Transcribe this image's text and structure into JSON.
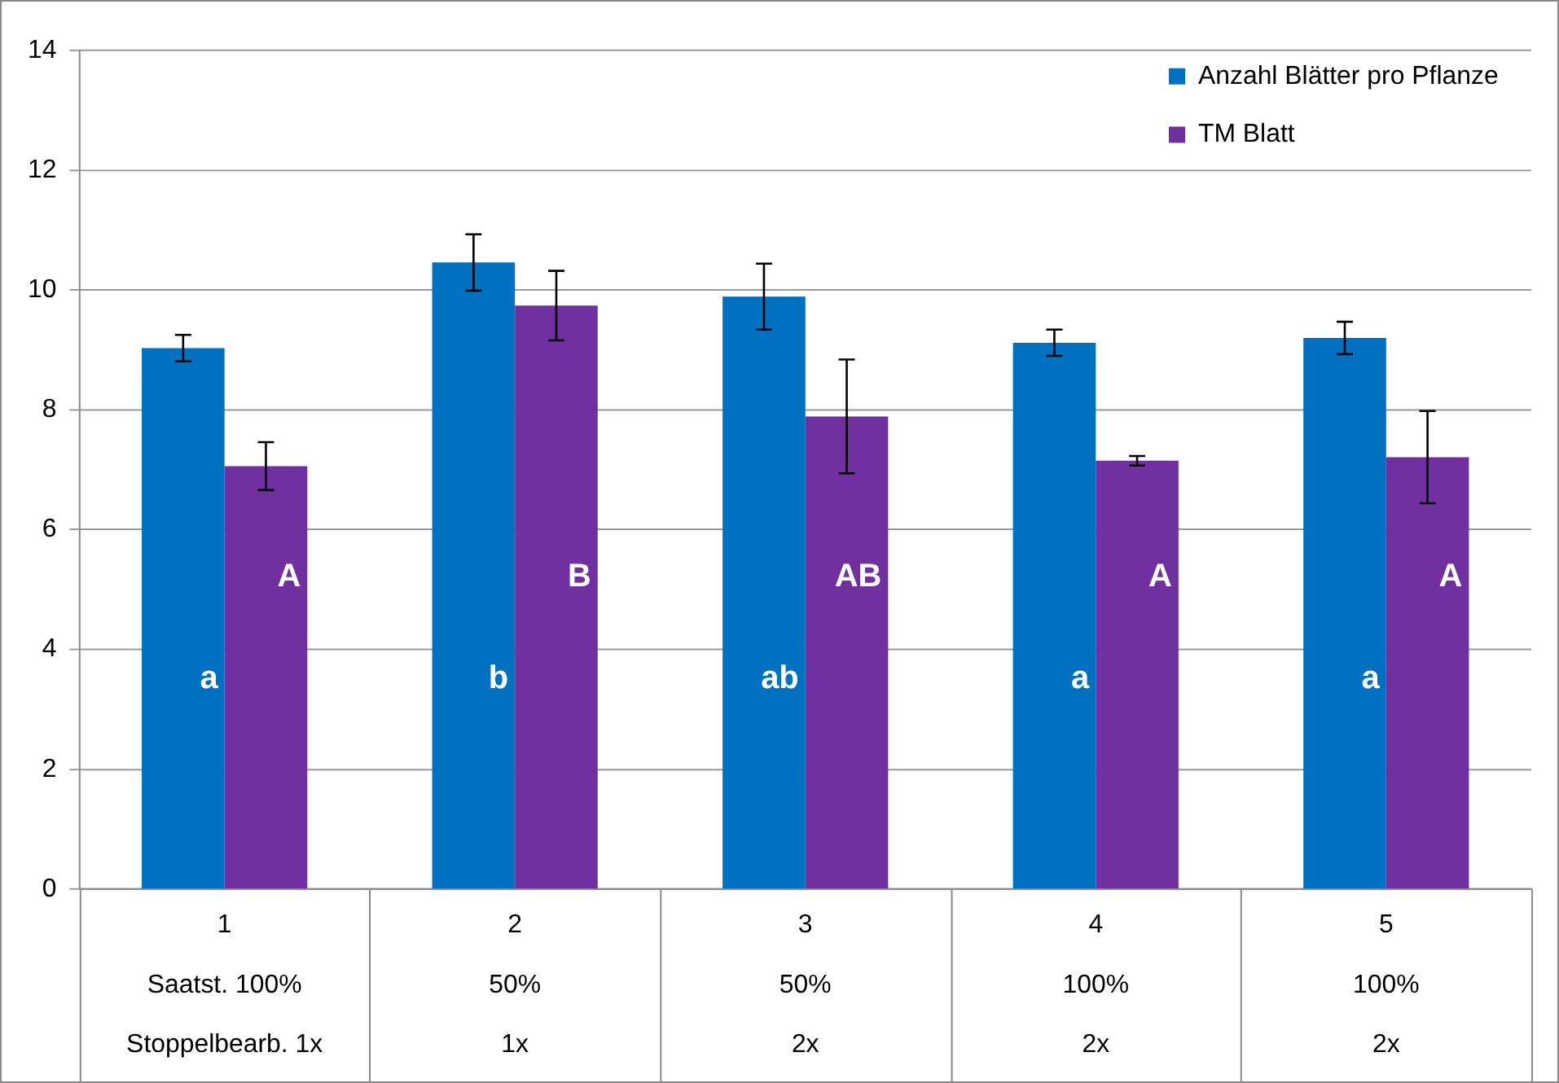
{
  "chart_data": {
    "type": "bar",
    "categories": [
      "1\nSaatst. 100%\nStoppelbearb. 1x",
      "2\n50%\n1x",
      "3\n50%\n2x",
      "4\n100%\n2x",
      "5\n100%\n2x"
    ],
    "series": [
      {
        "name": "Anzahl Blätter pro Pflanze",
        "color": "#0070c0",
        "values": [
          9.03,
          10.46,
          9.89,
          9.12,
          9.2
        ],
        "errors": [
          0.22,
          0.47,
          0.55,
          0.22,
          0.27
        ]
      },
      {
        "name": "TM Blatt",
        "color": "#7030a0",
        "values": [
          7.06,
          9.74,
          7.89,
          7.15,
          7.21
        ],
        "errors": [
          0.4,
          0.58,
          0.95,
          0.08,
          0.77
        ]
      }
    ],
    "ylim": [
      0,
      14
    ],
    "yticks": [
      0,
      2,
      4,
      6,
      8,
      10,
      12,
      14
    ],
    "grid": "y",
    "legend": "top right",
    "annotations": [
      {
        "text": "a",
        "x": "1\nSaatst. 100%\nStoppelbearb. 1x",
        "y": 3.5
      },
      {
        "text": "A",
        "x": "1\nSaatst. 100%\nStoppelbearb. 1x",
        "y": 5.2
      },
      {
        "text": "b",
        "x": "2\n50%\n1x",
        "y": 3.5
      },
      {
        "text": "B",
        "x": "2\n50%\n1x",
        "y": 5.2
      },
      {
        "text": "ab",
        "x": "3\n50%\n2x",
        "y": 3.5
      },
      {
        "text": "AB",
        "x": "3\n50%\n2x",
        "y": 5.2
      },
      {
        "text": "a",
        "x": "4\n100%\n2x",
        "y": 3.5
      },
      {
        "text": "A",
        "x": "4\n100%\n2x",
        "y": 5.2
      },
      {
        "text": "a",
        "x": "5\n100%\n2x",
        "y": 3.5
      },
      {
        "text": "A",
        "x": "5\n100%\n2x",
        "y": 5.2
      }
    ]
  }
}
